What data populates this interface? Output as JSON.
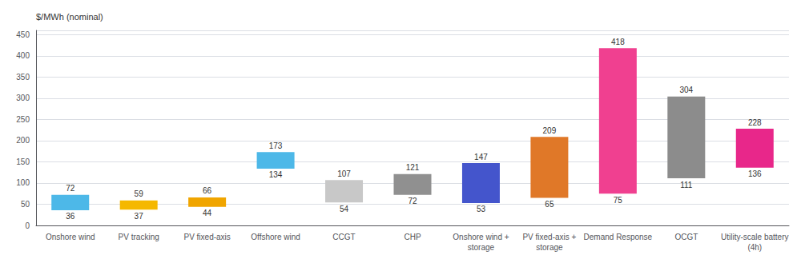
{
  "chart_data": {
    "type": "range_bar",
    "ylabel": "$/MWh (nominal)",
    "categories": [
      "Onshore wind",
      "PV tracking",
      "PV fixed-axis",
      "Offshore wind",
      "CCGT",
      "CHP",
      "Onshore wind +\nstorage",
      "PV fixed-axis +\nstorage",
      "Demand Response",
      "OCGT",
      "Utility-scale battery\n(4h)"
    ],
    "low": [
      36,
      37,
      44,
      134,
      54,
      72,
      53,
      65,
      75,
      111,
      136
    ],
    "high": [
      72,
      59,
      66,
      173,
      107,
      121,
      147,
      209,
      418,
      304,
      228
    ],
    "colors": [
      "#4db8e8",
      "#f5b800",
      "#f0a500",
      "#4db8e8",
      "#c8c8c8",
      "#909090",
      "#4455cc",
      "#e07828",
      "#f04090",
      "#8c8c8c",
      "#e8278a"
    ],
    "ylim": [
      0,
      460
    ],
    "yticks": [
      0,
      50,
      100,
      150,
      200,
      250,
      300,
      350,
      400,
      450
    ],
    "grid": true,
    "data_labels": true
  }
}
